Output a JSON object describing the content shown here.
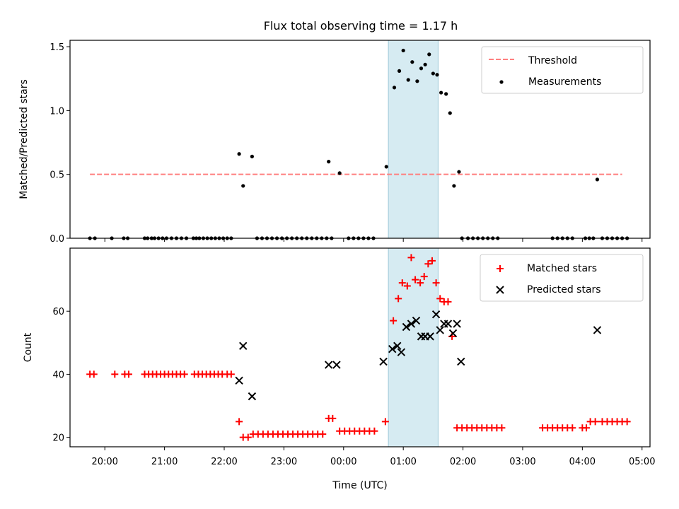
{
  "chart_data": [
    {
      "type": "scatter",
      "title": "Flux total observing time = 1.17 h",
      "ylabel": "Matched/Predicted stars",
      "xlabel": "",
      "ylim": [
        0,
        1.55
      ],
      "yticks": [
        "0.0",
        "0.5",
        "1.0",
        "1.5"
      ],
      "highlight_span": {
        "start": "00:45",
        "end": "01:35"
      },
      "legend": {
        "placement": "top-right",
        "entries": [
          "Threshold",
          "Measurements"
        ]
      },
      "threshold": {
        "name": "Threshold",
        "value": 0.5,
        "x_start": "19:45",
        "x_end": "04:40",
        "color": "#ff7f7f",
        "style": "dashed"
      },
      "series": [
        {
          "name": "Measurements",
          "marker": "dot",
          "color": "#000000",
          "points": [
            [
              "19:45",
              0
            ],
            [
              "19:50",
              0
            ],
            [
              "20:07",
              0
            ],
            [
              "20:19",
              0
            ],
            [
              "20:23",
              0
            ],
            [
              "20:40",
              0
            ],
            [
              "20:43",
              0
            ],
            [
              "20:47",
              0
            ],
            [
              "20:50",
              0
            ],
            [
              "20:54",
              0
            ],
            [
              "20:58",
              0
            ],
            [
              "21:02",
              0
            ],
            [
              "21:07",
              0
            ],
            [
              "21:12",
              0
            ],
            [
              "21:17",
              0
            ],
            [
              "21:22",
              0
            ],
            [
              "21:29",
              0
            ],
            [
              "21:32",
              0
            ],
            [
              "21:35",
              0
            ],
            [
              "21:39",
              0
            ],
            [
              "21:43",
              0
            ],
            [
              "21:47",
              0
            ],
            [
              "21:51",
              0
            ],
            [
              "21:55",
              0
            ],
            [
              "21:59",
              0
            ],
            [
              "22:03",
              0
            ],
            [
              "22:07",
              0
            ],
            [
              "22:15",
              0.66
            ],
            [
              "22:19",
              0.41
            ],
            [
              "22:28",
              0.64
            ],
            [
              "22:33",
              0
            ],
            [
              "22:38",
              0
            ],
            [
              "22:43",
              0
            ],
            [
              "22:48",
              0
            ],
            [
              "22:53",
              0
            ],
            [
              "22:58",
              0
            ],
            [
              "23:03",
              0
            ],
            [
              "23:08",
              0
            ],
            [
              "23:13",
              0
            ],
            [
              "23:18",
              0
            ],
            [
              "23:23",
              0
            ],
            [
              "23:28",
              0
            ],
            [
              "23:33",
              0
            ],
            [
              "23:38",
              0
            ],
            [
              "23:43",
              0
            ],
            [
              "23:48",
              0
            ],
            [
              "23:45",
              0.6
            ],
            [
              "23:56",
              0.51
            ],
            [
              "00:05",
              0
            ],
            [
              "00:10",
              0
            ],
            [
              "00:15",
              0
            ],
            [
              "00:20",
              0
            ],
            [
              "00:25",
              0
            ],
            [
              "00:30",
              0
            ],
            [
              "00:43",
              0.56
            ],
            [
              "00:51",
              1.18
            ],
            [
              "00:56",
              1.31
            ],
            [
              "01:00",
              1.47
            ],
            [
              "01:05",
              1.24
            ],
            [
              "01:09",
              1.38
            ],
            [
              "01:14",
              1.23
            ],
            [
              "01:18",
              1.33
            ],
            [
              "01:22",
              1.36
            ],
            [
              "01:26",
              1.44
            ],
            [
              "01:30",
              1.29
            ],
            [
              "01:34",
              1.28
            ],
            [
              "01:38",
              1.14
            ],
            [
              "01:43",
              1.13
            ],
            [
              "01:47",
              0.98
            ],
            [
              "01:51",
              0.41
            ],
            [
              "01:56",
              0.52
            ],
            [
              "01:59",
              0
            ],
            [
              "02:05",
              0
            ],
            [
              "02:10",
              0
            ],
            [
              "02:15",
              0
            ],
            [
              "02:20",
              0
            ],
            [
              "02:25",
              0
            ],
            [
              "02:30",
              0
            ],
            [
              "02:35",
              0
            ],
            [
              "03:30",
              0
            ],
            [
              "03:35",
              0
            ],
            [
              "03:40",
              0
            ],
            [
              "03:45",
              0
            ],
            [
              "03:50",
              0
            ],
            [
              "04:03",
              0
            ],
            [
              "04:07",
              0
            ],
            [
              "04:11",
              0
            ],
            [
              "04:15",
              0.46
            ],
            [
              "04:20",
              0
            ],
            [
              "04:25",
              0
            ],
            [
              "04:30",
              0
            ],
            [
              "04:35",
              0
            ],
            [
              "04:40",
              0
            ],
            [
              "04:45",
              0
            ]
          ]
        }
      ]
    },
    {
      "type": "scatter",
      "title": "",
      "xlabel": "Time (UTC)",
      "ylabel": "Count",
      "ylim": [
        17,
        80
      ],
      "yticks": [
        "20",
        "40",
        "60"
      ],
      "xticks": [
        "20:00",
        "21:00",
        "22:00",
        "23:00",
        "00:00",
        "01:00",
        "02:00",
        "03:00",
        "04:00",
        "05:00"
      ],
      "highlight_span": {
        "start": "00:45",
        "end": "01:35"
      },
      "legend": {
        "placement": "top-right",
        "entries": [
          "Matched stars",
          "Predicted stars"
        ]
      },
      "series": [
        {
          "name": "Matched stars",
          "marker": "plus",
          "color": "#ff0000",
          "points": [
            [
              "19:45",
              40
            ],
            [
              "19:49",
              40
            ],
            [
              "20:10",
              40
            ],
            [
              "20:20",
              40
            ],
            [
              "20:24",
              40
            ],
            [
              "20:40",
              40
            ],
            [
              "20:44",
              40
            ],
            [
              "20:48",
              40
            ],
            [
              "20:52",
              40
            ],
            [
              "20:56",
              40
            ],
            [
              "21:00",
              40
            ],
            [
              "21:04",
              40
            ],
            [
              "21:08",
              40
            ],
            [
              "21:12",
              40
            ],
            [
              "21:16",
              40
            ],
            [
              "21:20",
              40
            ],
            [
              "21:30",
              40
            ],
            [
              "21:34",
              40
            ],
            [
              "21:38",
              40
            ],
            [
              "21:42",
              40
            ],
            [
              "21:46",
              40
            ],
            [
              "21:50",
              40
            ],
            [
              "21:54",
              40
            ],
            [
              "21:58",
              40
            ],
            [
              "22:03",
              40
            ],
            [
              "22:07",
              40
            ],
            [
              "22:15",
              25
            ],
            [
              "22:19",
              20
            ],
            [
              "22:24",
              20
            ],
            [
              "22:29",
              21
            ],
            [
              "22:34",
              21
            ],
            [
              "22:39",
              21
            ],
            [
              "22:44",
              21
            ],
            [
              "22:49",
              21
            ],
            [
              "22:54",
              21
            ],
            [
              "22:59",
              21
            ],
            [
              "23:04",
              21
            ],
            [
              "23:09",
              21
            ],
            [
              "23:14",
              21
            ],
            [
              "23:19",
              21
            ],
            [
              "23:24",
              21
            ],
            [
              "23:29",
              21
            ],
            [
              "23:34",
              21
            ],
            [
              "23:39",
              21
            ],
            [
              "23:45",
              26
            ],
            [
              "23:49",
              26
            ],
            [
              "23:56",
              22
            ],
            [
              "24:01",
              22
            ],
            [
              "24:06",
              22
            ],
            [
              "24:11",
              22
            ],
            [
              "24:16",
              22
            ],
            [
              "24:21",
              22
            ],
            [
              "24:26",
              22
            ],
            [
              "24:31",
              22
            ],
            [
              "00:42",
              25
            ],
            [
              "00:50",
              57
            ],
            [
              "00:55",
              64
            ],
            [
              "00:59",
              69
            ],
            [
              "01:04",
              68
            ],
            [
              "01:08",
              77
            ],
            [
              "01:12",
              70
            ],
            [
              "01:17",
              69
            ],
            [
              "01:21",
              71
            ],
            [
              "01:25",
              75
            ],
            [
              "01:29",
              76
            ],
            [
              "01:33",
              69
            ],
            [
              "01:37",
              64
            ],
            [
              "01:41",
              63
            ],
            [
              "01:45",
              63
            ],
            [
              "01:49",
              52
            ],
            [
              "01:54",
              23
            ],
            [
              "01:59",
              23
            ],
            [
              "02:04",
              23
            ],
            [
              "02:09",
              23
            ],
            [
              "02:14",
              23
            ],
            [
              "02:19",
              23
            ],
            [
              "02:24",
              23
            ],
            [
              "02:29",
              23
            ],
            [
              "02:34",
              23
            ],
            [
              "02:39",
              23
            ],
            [
              "03:20",
              23
            ],
            [
              "03:25",
              23
            ],
            [
              "03:30",
              23
            ],
            [
              "03:35",
              23
            ],
            [
              "03:40",
              23
            ],
            [
              "03:45",
              23
            ],
            [
              "03:50",
              23
            ],
            [
              "04:00",
              23
            ],
            [
              "04:04",
              23
            ],
            [
              "04:08",
              25
            ],
            [
              "04:13",
              25
            ],
            [
              "04:20",
              25
            ],
            [
              "04:25",
              25
            ],
            [
              "04:30",
              25
            ],
            [
              "04:35",
              25
            ],
            [
              "04:40",
              25
            ],
            [
              "04:45",
              25
            ]
          ]
        },
        {
          "name": "Predicted stars",
          "marker": "x",
          "color": "#000000",
          "points": [
            [
              "22:15",
              38
            ],
            [
              "22:19",
              49
            ],
            [
              "22:28",
              33
            ],
            [
              "23:45",
              43
            ],
            [
              "23:53",
              43
            ],
            [
              "00:40",
              44
            ],
            [
              "00:49",
              48
            ],
            [
              "00:54",
              49
            ],
            [
              "00:58",
              47
            ],
            [
              "01:03",
              55
            ],
            [
              "01:08",
              56
            ],
            [
              "01:13",
              57
            ],
            [
              "01:18",
              52
            ],
            [
              "01:22",
              52
            ],
            [
              "01:27",
              52
            ],
            [
              "01:33",
              59
            ],
            [
              "01:37",
              54
            ],
            [
              "01:41",
              56
            ],
            [
              "01:45",
              56
            ],
            [
              "01:50",
              53
            ],
            [
              "01:54",
              56
            ],
            [
              "01:58",
              44
            ],
            [
              "04:15",
              54
            ]
          ]
        }
      ]
    }
  ]
}
